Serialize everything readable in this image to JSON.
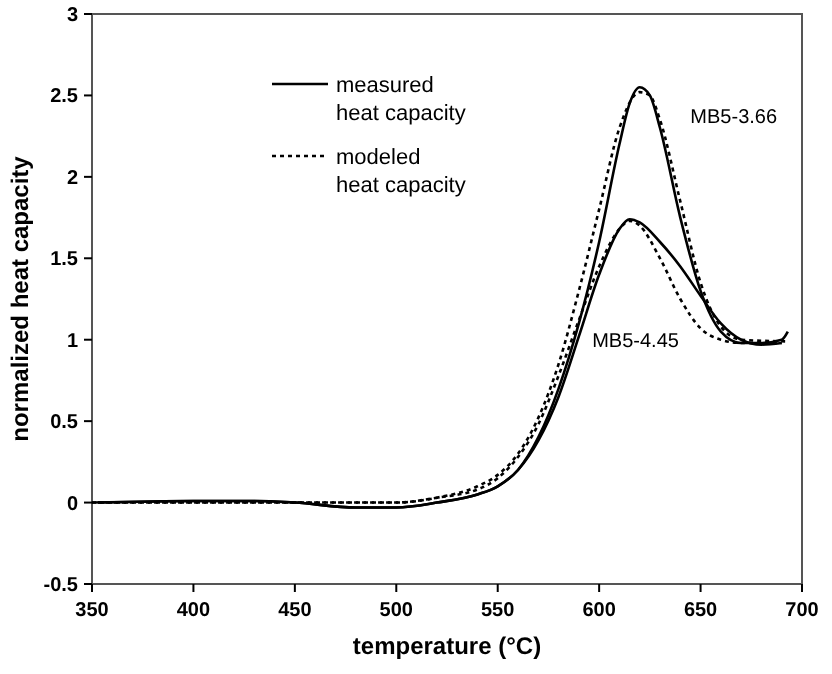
{
  "chart_data": {
    "type": "line",
    "xlabel": "temperature (°C)",
    "ylabel": "normalized heat capacity",
    "xlim": [
      350,
      700
    ],
    "xticks": [
      350,
      400,
      450,
      500,
      550,
      600,
      650,
      700
    ],
    "ylim": [
      -0.5,
      3
    ],
    "yticks": [
      -0.5,
      0,
      0.5,
      1,
      1.5,
      2,
      2.5,
      3
    ],
    "grid": false,
    "legend": "top left",
    "marker": "none",
    "series": [
      {
        "name": "measured heat capacity",
        "color": "#000000",
        "line_style": "solid",
        "x": [
          350,
          400,
          430,
          450,
          480,
          500,
          520,
          540,
          550,
          560,
          570,
          580,
          590,
          600,
          610,
          615,
          620,
          625,
          630,
          640,
          650,
          660,
          670,
          680,
          690,
          693
        ],
        "values": [
          0,
          0.01,
          0.01,
          0,
          -0.03,
          -0.03,
          0,
          0.05,
          0.1,
          0.2,
          0.4,
          0.7,
          1.1,
          1.6,
          2.2,
          2.45,
          2.55,
          2.5,
          2.3,
          1.75,
          1.3,
          1.05,
          0.98,
          0.98,
          1,
          1.05
        ]
      },
      {
        "name": "modeled heat capacity",
        "color": "#000000",
        "line_style": "dotted",
        "x": [
          350,
          450,
          500,
          520,
          540,
          550,
          560,
          570,
          580,
          590,
          600,
          610,
          620,
          625,
          630,
          640,
          650,
          660,
          670,
          692
        ],
        "values": [
          0,
          0,
          0,
          0.03,
          0.1,
          0.17,
          0.3,
          0.52,
          0.85,
          1.3,
          1.8,
          2.3,
          2.52,
          2.5,
          2.35,
          1.85,
          1.35,
          1.08,
          1,
          0.99
        ]
      },
      {
        "color": "#000000",
        "line_style": "solid",
        "x": [
          353,
          400,
          430,
          450,
          480,
          500,
          520,
          540,
          550,
          560,
          570,
          580,
          590,
          600,
          610,
          615,
          620,
          630,
          640,
          650,
          660,
          670,
          680,
          690
        ],
        "values": [
          0,
          0.01,
          0.01,
          0,
          -0.03,
          -0.03,
          0,
          0.05,
          0.1,
          0.2,
          0.38,
          0.65,
          1.02,
          1.4,
          1.68,
          1.74,
          1.72,
          1.6,
          1.45,
          1.27,
          1.1,
          1,
          0.97,
          0.98
        ]
      },
      {
        "color": "#000000",
        "line_style": "dotted",
        "x": [
          353,
          450,
          500,
          520,
          540,
          550,
          560,
          570,
          580,
          590,
          600,
          610,
          615,
          620,
          630,
          640,
          650,
          660,
          670,
          690
        ],
        "values": [
          0,
          0,
          0,
          0.03,
          0.08,
          0.15,
          0.28,
          0.48,
          0.78,
          1.12,
          1.45,
          1.68,
          1.73,
          1.7,
          1.5,
          1.25,
          1.07,
          1,
          0.98,
          0.98
        ]
      }
    ],
    "annotations": [
      "MB5-3.66",
      "MB5-4.45"
    ]
  }
}
